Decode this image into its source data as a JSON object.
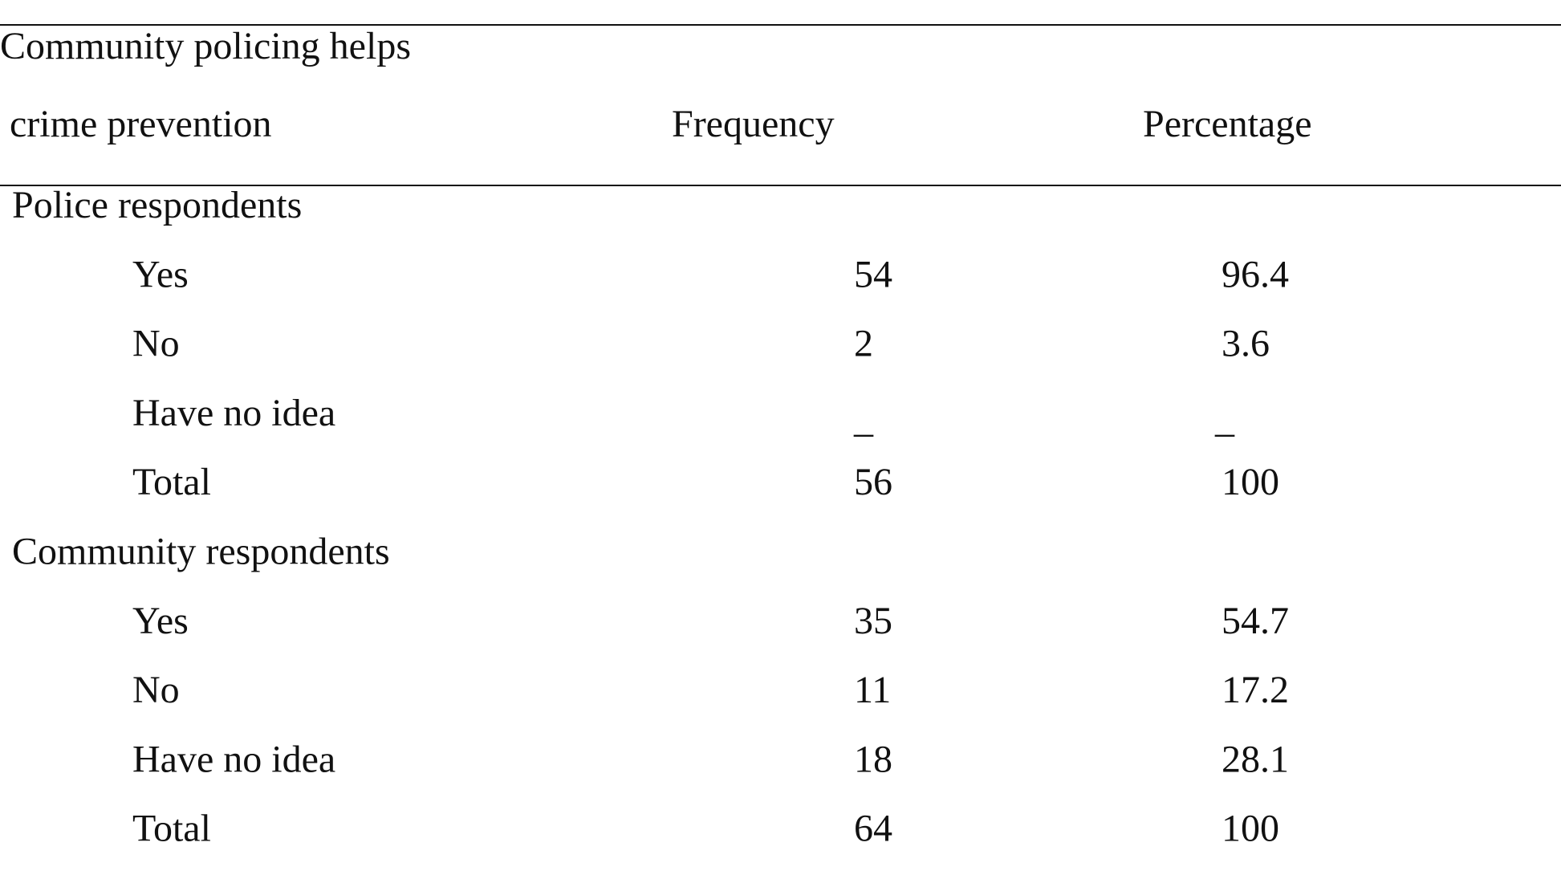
{
  "table": {
    "header": {
      "label_lines": [
        "Community policing helps",
        "crime prevention"
      ],
      "columns": [
        "Frequency",
        "Percentage"
      ]
    },
    "groups": [
      {
        "title": "Police respondents",
        "rows": [
          [
            "Yes",
            54,
            96.4
          ],
          [
            "No",
            2,
            3.6
          ],
          [
            "Have no idea",
            "_",
            "_"
          ],
          [
            "Total",
            56,
            100
          ]
        ]
      },
      {
        "title": "Community respondents",
        "rows": [
          [
            "Yes",
            35,
            54.7
          ],
          [
            "No",
            11,
            17.2
          ],
          [
            "Have no idea",
            18,
            28.1
          ],
          [
            "Total",
            64,
            100
          ]
        ]
      }
    ]
  }
}
